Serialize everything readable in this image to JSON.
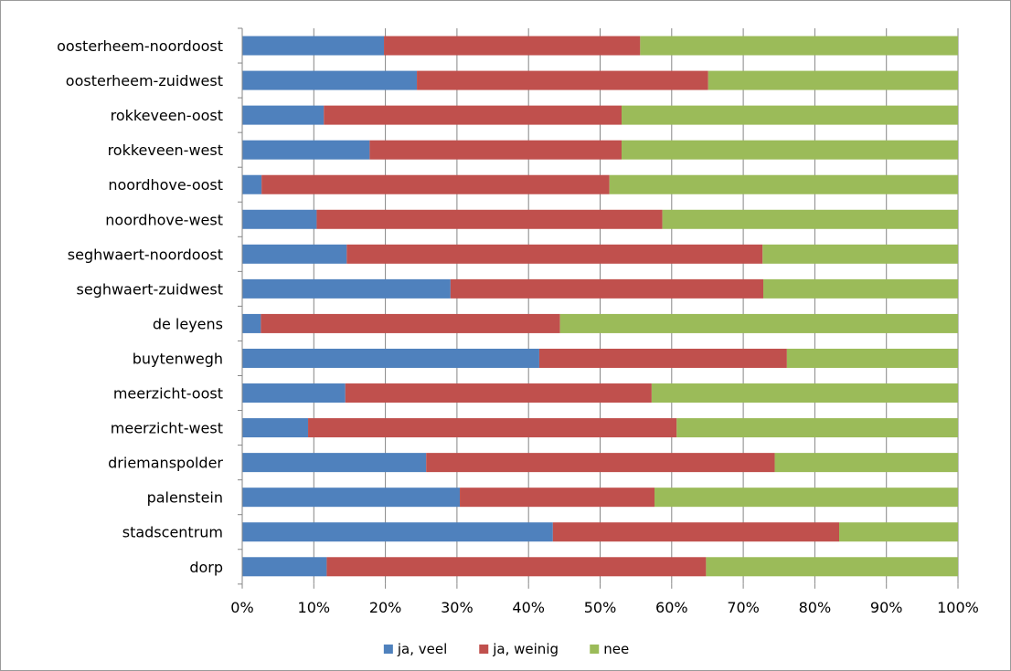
{
  "chart_data": {
    "type": "bar",
    "orientation": "horizontal",
    "stacked": "100%",
    "categories": [
      "oosterheem-noordoost",
      "oosterheem-zuidwest",
      "rokkeveen-oost",
      "rokkeveen-west",
      "noordhove-oost",
      "noordhove-west",
      "seghwaert-noordoost",
      "seghwaert-zuidwest",
      "de leyens",
      "buytenwegh",
      "meerzicht-oost",
      "meerzicht-west",
      "driemanspolder",
      "palenstein",
      "stadscentrum",
      "dorp"
    ],
    "series": [
      {
        "name": "ja, veel",
        "color": "#4F81BD",
        "values": [
          19.8,
          24.4,
          11.4,
          17.8,
          2.7,
          10.4,
          14.6,
          29.1,
          2.6,
          41.5,
          14.4,
          9.2,
          25.7,
          30.4,
          43.4,
          11.8
        ]
      },
      {
        "name": "ja, weinig",
        "color": "#C0504D",
        "values": [
          35.8,
          40.7,
          41.6,
          35.2,
          48.6,
          48.3,
          58.1,
          43.7,
          41.8,
          34.6,
          42.8,
          51.5,
          48.7,
          27.2,
          40.0,
          53.0
        ]
      },
      {
        "name": "nee",
        "color": "#9BBB59",
        "values": [
          44.4,
          34.9,
          47.0,
          47.0,
          48.7,
          41.3,
          27.3,
          27.2,
          55.6,
          23.9,
          42.8,
          39.3,
          25.6,
          42.4,
          16.6,
          35.2
        ]
      }
    ],
    "x_ticks": [
      "0%",
      "10%",
      "20%",
      "30%",
      "40%",
      "50%",
      "60%",
      "70%",
      "80%",
      "90%",
      "100%"
    ],
    "xlim": [
      0,
      100
    ],
    "xlabel": "",
    "ylabel": "",
    "title": "",
    "grid": "vertical gridlines",
    "legend_position": "bottom"
  }
}
